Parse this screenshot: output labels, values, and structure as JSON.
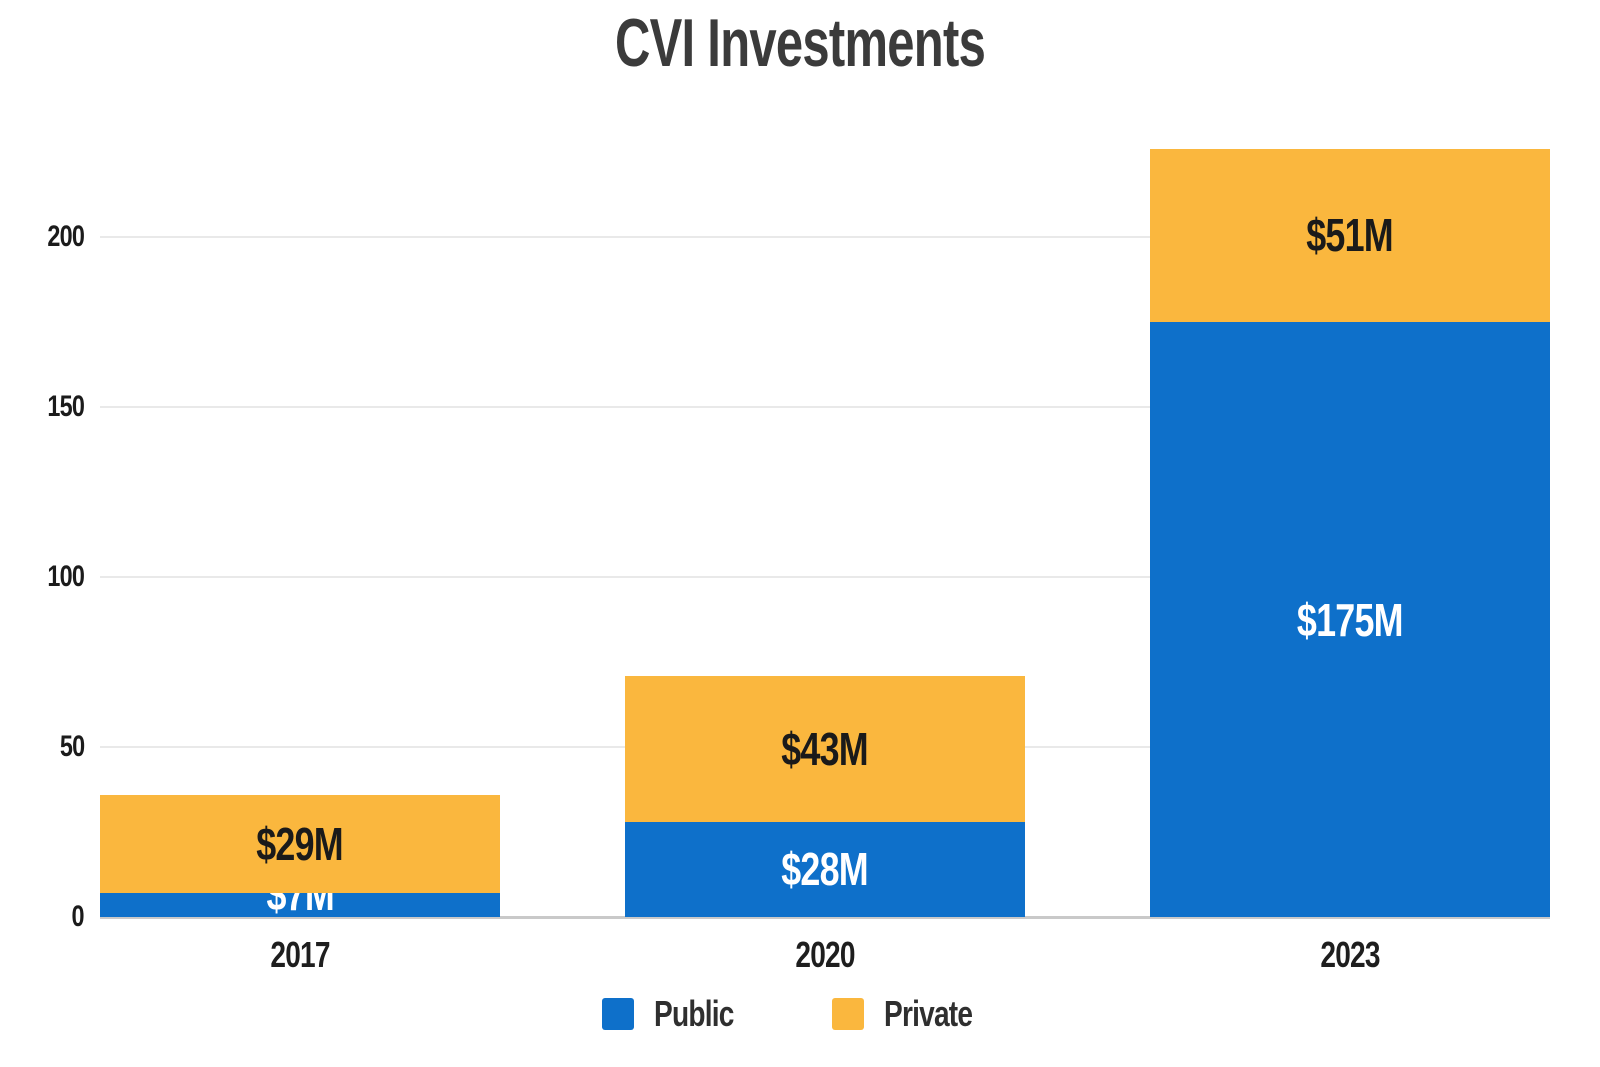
{
  "chart_data": {
    "type": "bar",
    "stacked": true,
    "title": "CVI Investments",
    "categories": [
      "2017",
      "2020",
      "2023"
    ],
    "series": [
      {
        "name": "Public",
        "color": "#0E70CA",
        "label_color": "#ffffff",
        "values": [
          7,
          28,
          175
        ],
        "labels": [
          "$7M",
          "$28M",
          "$175M"
        ]
      },
      {
        "name": "Private",
        "color": "#FAB73E",
        "label_color": "#1a1a1a",
        "values": [
          29,
          43,
          51
        ],
        "labels": [
          "$29M",
          "$43M",
          "$51M"
        ]
      }
    ],
    "y_ticks": [
      0,
      50,
      100,
      150,
      200
    ],
    "ylim": [
      0,
      228
    ],
    "grid": true,
    "legend_position": "bottom",
    "text_colors": {
      "title": "#3b3b3b",
      "ticks": "#1b1b1b",
      "legend": "#2f2f2f"
    }
  }
}
